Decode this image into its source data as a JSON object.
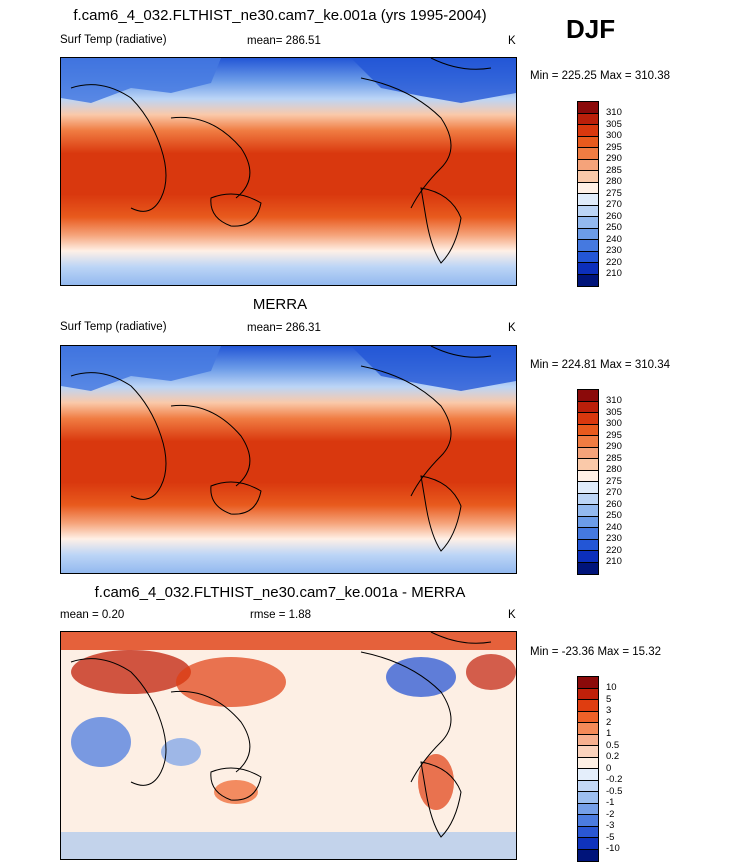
{
  "season": "DJF",
  "panels": [
    {
      "title": "f.cam6_4_032.FLTHIST_ne30.cam7_ke.001a (yrs 1995-2004)",
      "left_label": "Surf Temp (radiative)",
      "center_label": "mean= 286.51",
      "units": "K",
      "minmax": "Min = 225.25 Max = 310.38",
      "colorbar": {
        "labels": [
          "310",
          "305",
          "300",
          "295",
          "290",
          "285",
          "280",
          "275",
          "270",
          "260",
          "250",
          "240",
          "230",
          "220",
          "210"
        ],
        "colors": [
          "#8b0a0a",
          "#bb1f0a",
          "#d9380e",
          "#e85a1d",
          "#f07c42",
          "#f5a37a",
          "#fac9a9",
          "#fff0e6",
          "#e0ecfb",
          "#bcd5f6",
          "#93b9ef",
          "#6c9ce8",
          "#4579e0",
          "#2356d6",
          "#0c2fbb",
          "#00147a"
        ]
      }
    },
    {
      "title": "MERRA",
      "left_label": "Surf Temp (radiative)",
      "center_label": "mean= 286.31",
      "units": "K",
      "minmax": "Min = 224.81 Max = 310.34",
      "colorbar": {
        "labels": [
          "310",
          "305",
          "300",
          "295",
          "290",
          "285",
          "280",
          "275",
          "270",
          "260",
          "250",
          "240",
          "230",
          "220",
          "210"
        ],
        "colors": [
          "#8b0a0a",
          "#bb1f0a",
          "#d9380e",
          "#e85a1d",
          "#f07c42",
          "#f5a37a",
          "#fac9a9",
          "#fff0e6",
          "#e0ecfb",
          "#bcd5f6",
          "#93b9ef",
          "#6c9ce8",
          "#4579e0",
          "#2356d6",
          "#0c2fbb",
          "#00147a"
        ]
      }
    },
    {
      "title": "f.cam6_4_032.FLTHIST_ne30.cam7_ke.001a - MERRA",
      "left_label": "mean =   0.20",
      "center_label": "rmse =   1.88",
      "units": "K",
      "minmax": "Min = -23.36 Max =  15.32",
      "colorbar": {
        "labels": [
          "10",
          "5",
          "3",
          "2",
          "1",
          "0.5",
          "0.2",
          "0",
          "-0.2",
          "-0.5",
          "-1",
          "-2",
          "-3",
          "-5",
          "-10"
        ],
        "colors": [
          "#8b0a0a",
          "#c0200a",
          "#df3d10",
          "#ee6128",
          "#f48a58",
          "#f7b08f",
          "#fbd3bd",
          "#fdefe4",
          "#e4eefb",
          "#c3d8f6",
          "#9dbff0",
          "#759fe8",
          "#4c7ce0",
          "#2a57d4",
          "#0f33bd",
          "#00147a"
        ]
      }
    }
  ]
}
